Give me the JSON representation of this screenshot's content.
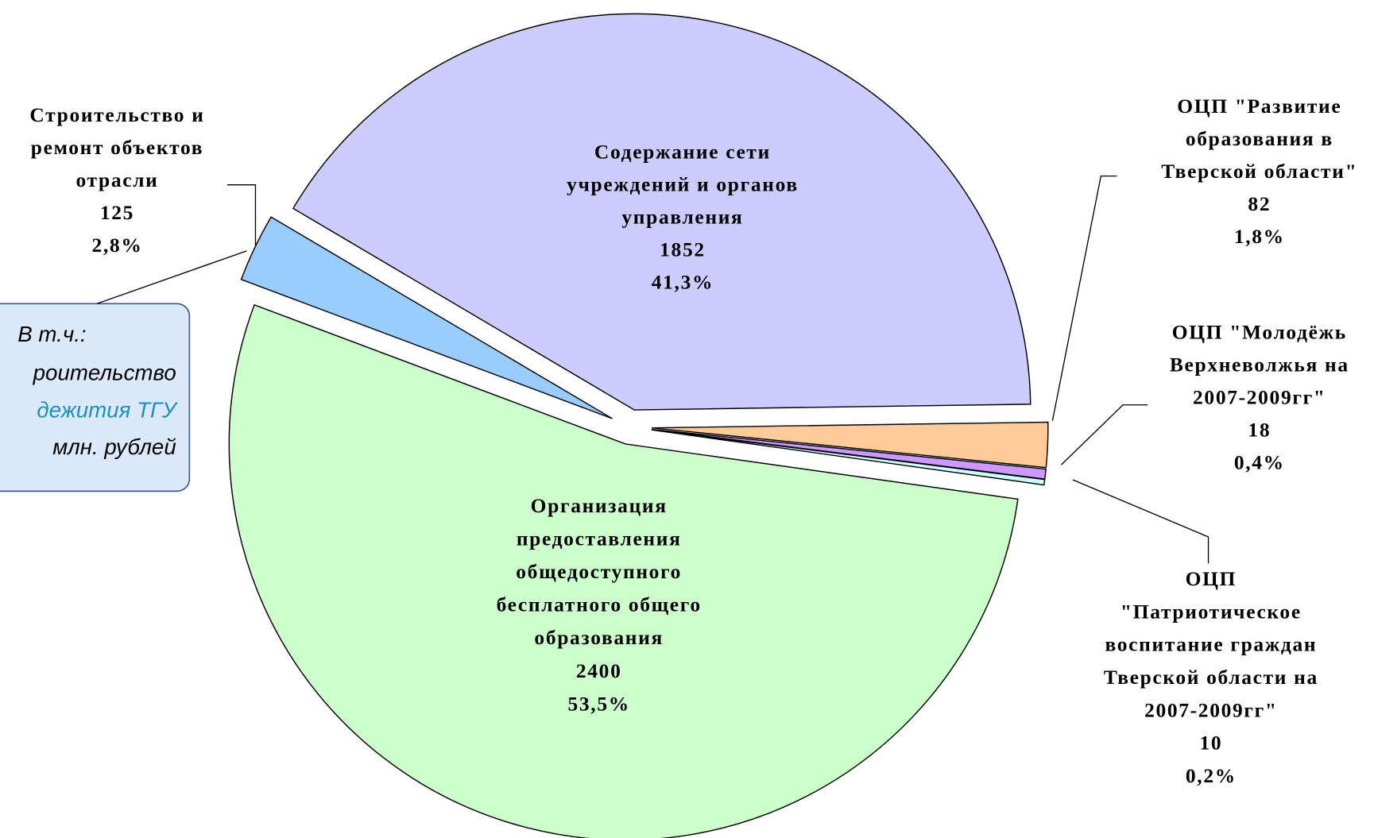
{
  "chart_data": {
    "type": "pie",
    "categories": [
      [
        "Организация",
        "предоставления",
        "общедоступного",
        "бесплатного общего",
        "образования"
      ],
      [
        "Строительство и",
        "ремонт объектов",
        "отрасли"
      ],
      [
        "Содержание сети",
        "учреждений и органов",
        "управления"
      ],
      [
        "ОЦП \"Развитие",
        "образования в",
        "Тверской области\""
      ],
      [
        "ОЦП \"Молодёжь",
        "Верхневолжья на",
        "2007-2009гг\""
      ],
      [
        "ОЦП",
        "\"Патриотическое",
        "воспитание граждан",
        "Тверской области на",
        "2007-2009гг\""
      ]
    ],
    "values": [
      2400,
      125,
      1852,
      82,
      18,
      10
    ],
    "percent_labels": [
      "53,5%",
      "2,8%",
      "41,3%",
      "1,8%",
      "0,4%",
      "0,2%"
    ],
    "colors": [
      "#ccffcc",
      "#99ccff",
      "#ccccff",
      "#ffcc99",
      "#cc99ff",
      "#ccffff"
    ],
    "annotations": [
      "В т.ч.:",
      "роительство",
      "дежития ТГУ",
      "млн. рублей"
    ]
  }
}
